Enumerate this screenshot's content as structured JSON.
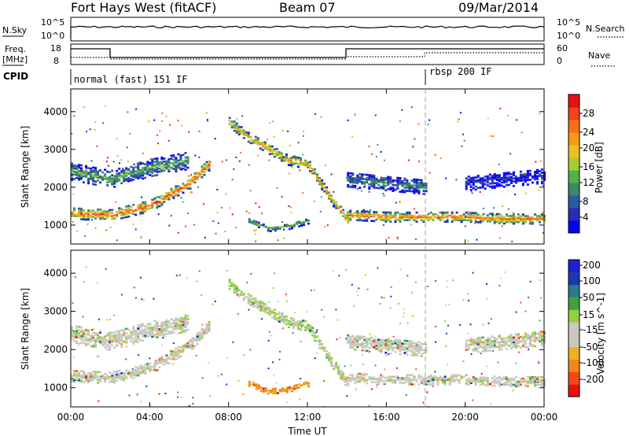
{
  "header": {
    "radar": "Fort Hays West (fitACF)",
    "beam": "Beam 07",
    "date": "09/Mar/2014"
  },
  "top_panels": {
    "nsky_label": "N.Sky",
    "nsky_ticks": [
      "10^5",
      "10^0"
    ],
    "nsearch_label": "N.Search",
    "nsearch_ticks": [
      "10^5",
      "10^0"
    ],
    "freq_label": "Freq.",
    "freq_unit": "[MHz]",
    "freq_ticks": [
      "18",
      "8"
    ],
    "nave_label": "Nave",
    "nave_ticks": [
      "60",
      "0"
    ],
    "cpid_label": "CPID",
    "cpid_modes": [
      {
        "label": "normal (fast) 151 IF",
        "start_hour": 0
      },
      {
        "label": "rbsp 200 IF",
        "start_hour": 18
      }
    ]
  },
  "power_colorbar": {
    "title": "Power [dB]",
    "ticks": [
      "4",
      "8",
      "12",
      "16",
      "20",
      "24",
      "28"
    ],
    "colors": [
      "#0000ff",
      "#2a2ab8",
      "#2e5a9e",
      "#3a8a6a",
      "#55b04a",
      "#a6cc30",
      "#f0c020",
      "#f59a1a",
      "#f5701a",
      "#f04418",
      "#e81010"
    ]
  },
  "velocity_colorbar": {
    "title": "Velocity [m s^-1]",
    "ticks": [
      "-200",
      "-100",
      "-50",
      "-15",
      "15",
      "50",
      "100",
      "200"
    ],
    "colors": [
      "#e81010",
      "#f24a14",
      "#f5871a",
      "#f0b020",
      "#c8c8c0",
      "#c8c8c0",
      "#90d040",
      "#40a040",
      "#2a7a90",
      "#1a3ab0",
      "#2020d8"
    ]
  },
  "chart_data": [
    {
      "type": "heatmap",
      "panel": "power",
      "ylabel": "Slant Range [km]",
      "yticks": [
        1000,
        2000,
        3000,
        4000
      ],
      "ylim": [
        500,
        4600
      ],
      "xlim": [
        0,
        24
      ],
      "bands": [
        {
          "name": "near-range echo",
          "points": [
            [
              0,
              1300
            ],
            [
              2,
              1250
            ],
            [
              4,
              1500
            ],
            [
              6,
              2100
            ],
            [
              7,
              2600
            ]
          ],
          "width": 300,
          "level": 0.85
        },
        {
          "name": "far-range echo",
          "points": [
            [
              0,
              2400
            ],
            [
              2,
              2200
            ],
            [
              4,
              2500
            ],
            [
              6,
              2700
            ]
          ],
          "width": 450,
          "level": 0.4
        },
        {
          "name": "high arc",
          "points": [
            [
              8,
              3700
            ],
            [
              9,
              3300
            ],
            [
              10,
              3000
            ],
            [
              11,
              2700
            ],
            [
              12,
              2600
            ],
            [
              13,
              1800
            ],
            [
              14,
              1100
            ]
          ],
          "width": 250,
          "level": 0.7
        },
        {
          "name": "afternoon echo",
          "points": [
            [
              14,
              1250
            ],
            [
              16,
              1200
            ],
            [
              18,
              1200
            ],
            [
              20,
              1200
            ],
            [
              22,
              1150
            ],
            [
              24,
              1150
            ]
          ],
          "width": 250,
          "level": 0.8
        },
        {
          "name": "afternoon far echo",
          "points": [
            [
              14,
              2200
            ],
            [
              16,
              2100
            ],
            [
              18,
              2000
            ]
          ],
          "width": 400,
          "level": 0.3
        },
        {
          "name": "evening far echo",
          "points": [
            [
              20,
              2100
            ],
            [
              22,
              2200
            ],
            [
              24,
              2300
            ]
          ],
          "width": 400,
          "level": 0.15
        },
        {
          "name": "lower patch",
          "points": [
            [
              9,
              1100
            ],
            [
              10,
              900
            ],
            [
              11,
              950
            ],
            [
              12,
              1100
            ]
          ],
          "width": 150,
          "level": 0.4
        }
      ]
    },
    {
      "type": "heatmap",
      "panel": "velocity",
      "ylabel": "Slant Range [km]",
      "yticks": [
        1000,
        2000,
        3000,
        4000
      ],
      "ylim": [
        500,
        4600
      ],
      "xlim": [
        0,
        24
      ],
      "xticks": [
        "00:00",
        "04:00",
        "08:00",
        "12:00",
        "16:00",
        "20:00",
        "00:00"
      ],
      "xlabel": "Time UT",
      "bands": [
        {
          "name": "near-range echo",
          "points": [
            [
              0,
              1300
            ],
            [
              2,
              1250
            ],
            [
              4,
              1500
            ],
            [
              6,
              2100
            ],
            [
              7,
              2600
            ]
          ],
          "width": 300,
          "level": 0.5
        },
        {
          "name": "far-range echo",
          "points": [
            [
              0,
              2400
            ],
            [
              2,
              2200
            ],
            [
              4,
              2500
            ],
            [
              6,
              2700
            ]
          ],
          "width": 450,
          "level": 0.5
        },
        {
          "name": "high arc",
          "points": [
            [
              8,
              3700
            ],
            [
              9,
              3300
            ],
            [
              10,
              3000
            ],
            [
              11,
              2700
            ],
            [
              12,
              2600
            ],
            [
              13,
              1800
            ],
            [
              14,
              1100
            ]
          ],
          "width": 250,
          "level": 0.55
        },
        {
          "name": "afternoon echo",
          "points": [
            [
              14,
              1250
            ],
            [
              16,
              1200
            ],
            [
              18,
              1200
            ],
            [
              20,
              1200
            ],
            [
              22,
              1150
            ],
            [
              24,
              1150
            ]
          ],
          "width": 250,
          "level": 0.5
        },
        {
          "name": "afternoon far echo",
          "points": [
            [
              14,
              2200
            ],
            [
              16,
              2100
            ],
            [
              18,
              2000
            ]
          ],
          "width": 400,
          "level": 0.5
        },
        {
          "name": "evening far echo",
          "points": [
            [
              20,
              2100
            ],
            [
              22,
              2200
            ],
            [
              24,
              2300
            ]
          ],
          "width": 400,
          "level": 0.5
        },
        {
          "name": "lower patch",
          "points": [
            [
              9,
              1100
            ],
            [
              10,
              900
            ],
            [
              11,
              950
            ],
            [
              12,
              1100
            ]
          ],
          "width": 150,
          "level": 0.25
        }
      ]
    }
  ]
}
